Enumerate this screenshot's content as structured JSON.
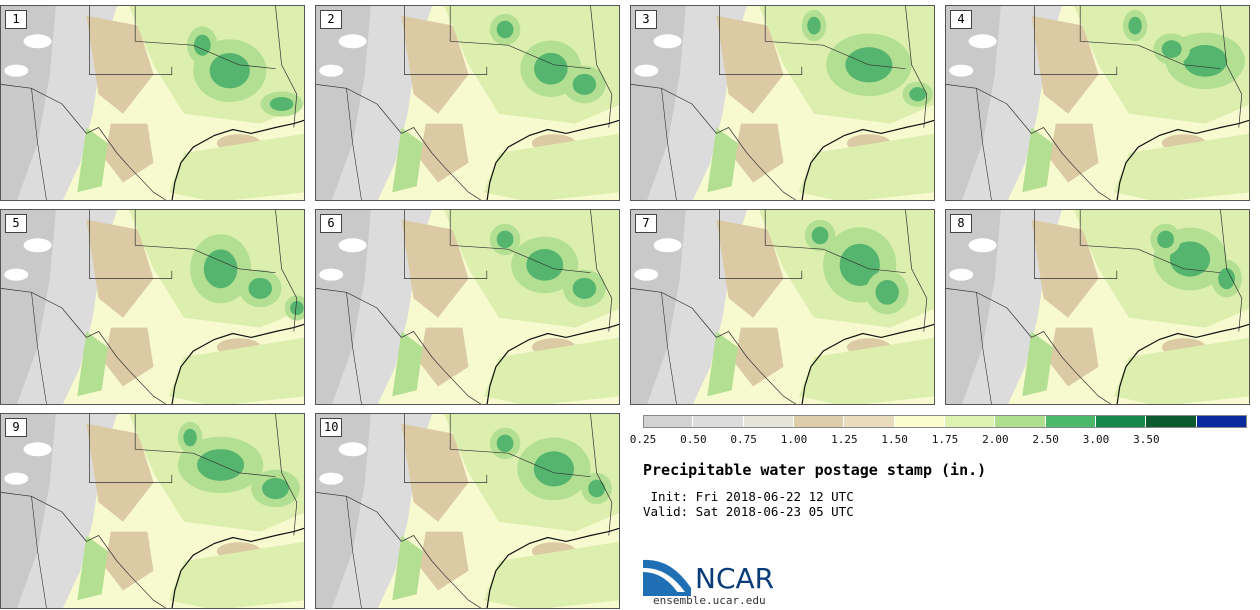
{
  "panels": [
    {
      "label": "1",
      "greens": [
        [
          0.75,
          0.33,
          0.12,
          0.1
        ],
        [
          0.66,
          0.2,
          0.05,
          0.06
        ],
        [
          0.92,
          0.5,
          0.07,
          0.04
        ]
      ]
    },
    {
      "label": "2",
      "greens": [
        [
          0.77,
          0.32,
          0.1,
          0.09
        ],
        [
          0.88,
          0.4,
          0.07,
          0.06
        ],
        [
          0.62,
          0.12,
          0.05,
          0.05
        ]
      ]
    },
    {
      "label": "3",
      "greens": [
        [
          0.78,
          0.3,
          0.14,
          0.1
        ],
        [
          0.94,
          0.45,
          0.05,
          0.04
        ],
        [
          0.6,
          0.1,
          0.04,
          0.05
        ]
      ]
    },
    {
      "label": "4",
      "greens": [
        [
          0.85,
          0.28,
          0.13,
          0.09
        ],
        [
          0.74,
          0.22,
          0.06,
          0.05
        ],
        [
          0.62,
          0.1,
          0.04,
          0.05
        ]
      ]
    },
    {
      "label": "5",
      "greens": [
        [
          0.72,
          0.3,
          0.1,
          0.11
        ],
        [
          0.85,
          0.4,
          0.07,
          0.06
        ],
        [
          0.97,
          0.5,
          0.04,
          0.04
        ]
      ]
    },
    {
      "label": "6",
      "greens": [
        [
          0.75,
          0.28,
          0.11,
          0.09
        ],
        [
          0.88,
          0.4,
          0.07,
          0.06
        ],
        [
          0.62,
          0.15,
          0.05,
          0.05
        ]
      ]
    },
    {
      "label": "7",
      "greens": [
        [
          0.75,
          0.28,
          0.12,
          0.12
        ],
        [
          0.84,
          0.42,
          0.07,
          0.07
        ],
        [
          0.62,
          0.13,
          0.05,
          0.05
        ]
      ]
    },
    {
      "label": "8",
      "greens": [
        [
          0.8,
          0.25,
          0.12,
          0.1
        ],
        [
          0.92,
          0.35,
          0.05,
          0.06
        ],
        [
          0.72,
          0.15,
          0.05,
          0.05
        ]
      ]
    },
    {
      "label": "9",
      "greens": [
        [
          0.72,
          0.26,
          0.14,
          0.09
        ],
        [
          0.9,
          0.38,
          0.08,
          0.06
        ],
        [
          0.62,
          0.12,
          0.04,
          0.05
        ]
      ]
    },
    {
      "label": "10",
      "greens": [
        [
          0.78,
          0.28,
          0.12,
          0.1
        ],
        [
          0.92,
          0.38,
          0.05,
          0.05
        ],
        [
          0.62,
          0.15,
          0.05,
          0.05
        ]
      ]
    }
  ],
  "colorbar": {
    "ticks": [
      "0.25",
      "0.50",
      "0.75",
      "1.00",
      "1.25",
      "1.50",
      "1.75",
      "2.00",
      "2.50",
      "3.00",
      "3.50"
    ],
    "colors": [
      "#d2d2d2",
      "#dcdcdc",
      "#e6e4d8",
      "#ddcdaa",
      "#e8dcbc",
      "#fbfdd0",
      "#dff3b0",
      "#aedf8e",
      "#4bb86a",
      "#15884a",
      "#0b5a30",
      "#0a2a9e"
    ]
  },
  "map_colors": {
    "gray_dark": "#c9c9c9",
    "gray_light": "#dcdcdc",
    "tan": "#dccaa4",
    "cream": "#f7f9cf",
    "lime": "#dcefae",
    "light_green": "#b3df92",
    "green": "#55b56e",
    "border": "#333333"
  },
  "title": "Precipitable water postage stamp (in.)",
  "init": " Init: Fri 2018-06-22 12 UTC",
  "valid": "Valid: Sat 2018-06-23 05 UTC",
  "logo": {
    "name": "NCAR",
    "site": "ensemble.ucar.edu"
  }
}
